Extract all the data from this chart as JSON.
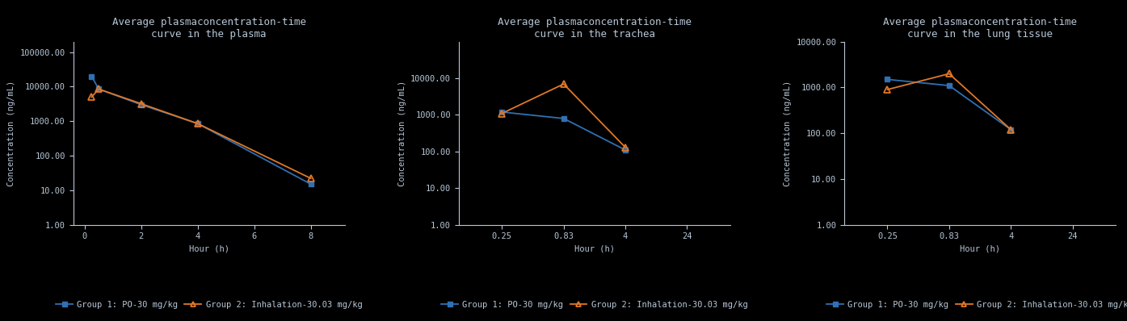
{
  "plots": [
    {
      "title": "Average plasmaconcentration-time\ncurve in the plasma",
      "xlabel": "Hour (h)",
      "ylabel": "Concentration (ng/mL)",
      "xticklabels": [
        "0",
        "2",
        "4",
        "6",
        "8"
      ],
      "xticks": [
        0,
        2,
        4,
        6,
        8
      ],
      "xlim": [
        -0.4,
        9.2
      ],
      "ylim": [
        1.0,
        200000
      ],
      "yticks": [
        1.0,
        10.0,
        100.0,
        1000.0,
        10000.0,
        100000.0
      ],
      "yticklabels": [
        "1.00",
        "10.00",
        "100.00",
        "1000.00",
        "10000.00",
        "100000.00"
      ],
      "group1": {
        "x": [
          0.25,
          0.5,
          2,
          4,
          8
        ],
        "y": [
          20000,
          8500,
          3000,
          850,
          15
        ]
      },
      "group2": {
        "x": [
          0.25,
          0.5,
          2,
          4,
          8
        ],
        "y": [
          5000,
          8500,
          3200,
          850,
          22
        ]
      }
    },
    {
      "title": "Average plasmaconcentration-time\ncurve in the trachea",
      "xlabel": "Hour (h)",
      "ylabel": "Concentration (ng/mL)",
      "xticklabels": [
        "0.25",
        "0.83",
        "4",
        "24"
      ],
      "xticks": [
        1,
        2,
        3,
        4
      ],
      "xlim": [
        0.3,
        4.7
      ],
      "ylim": [
        1.0,
        100000
      ],
      "yticks": [
        1.0,
        10.0,
        100.0,
        1000.0,
        10000.0
      ],
      "yticklabels": [
        "1.00",
        "10.00",
        "100.00",
        "1000.00",
        "10000.00"
      ],
      "group1": {
        "x": [
          1,
          2,
          3
        ],
        "y": [
          1200,
          800,
          110
        ]
      },
      "group2": {
        "x": [
          1,
          2,
          3
        ],
        "y": [
          1100,
          7000,
          130
        ]
      }
    },
    {
      "title": "Average plasmaconcentration-time\ncurve in the lung tissue",
      "xlabel": "Hour (h)",
      "ylabel": "Concentration (ng/mL)",
      "xticklabels": [
        "0.25",
        "0.83",
        "4",
        "24"
      ],
      "xticks": [
        1,
        2,
        3,
        4
      ],
      "xlim": [
        0.3,
        4.7
      ],
      "ylim": [
        1.0,
        10000
      ],
      "yticks": [
        1.0,
        10.0,
        100.0,
        1000.0,
        10000.0
      ],
      "yticklabels": [
        "1.00",
        "10.00",
        "100.00",
        "1000.00",
        "10000.00"
      ],
      "group1": {
        "x": [
          1,
          2,
          3
        ],
        "y": [
          1500,
          1100,
          120
        ]
      },
      "group2": {
        "x": [
          1,
          2,
          3
        ],
        "y": [
          900,
          2000,
          120
        ]
      }
    }
  ],
  "legend": [
    {
      "label": "Group 1: PO-30 mg/kg",
      "color": "#3070b3",
      "marker": "s",
      "linestyle": "-"
    },
    {
      "label": "Group 2: Inhalation-30.03 mg/kg",
      "color": "#e07828",
      "marker": "^",
      "linestyle": "-"
    }
  ],
  "background_color": "#000000",
  "text_color": "#b8c8d8",
  "title_fontsize": 9,
  "label_fontsize": 7.5,
  "tick_fontsize": 7.5,
  "legend_fontsize": 7.5
}
